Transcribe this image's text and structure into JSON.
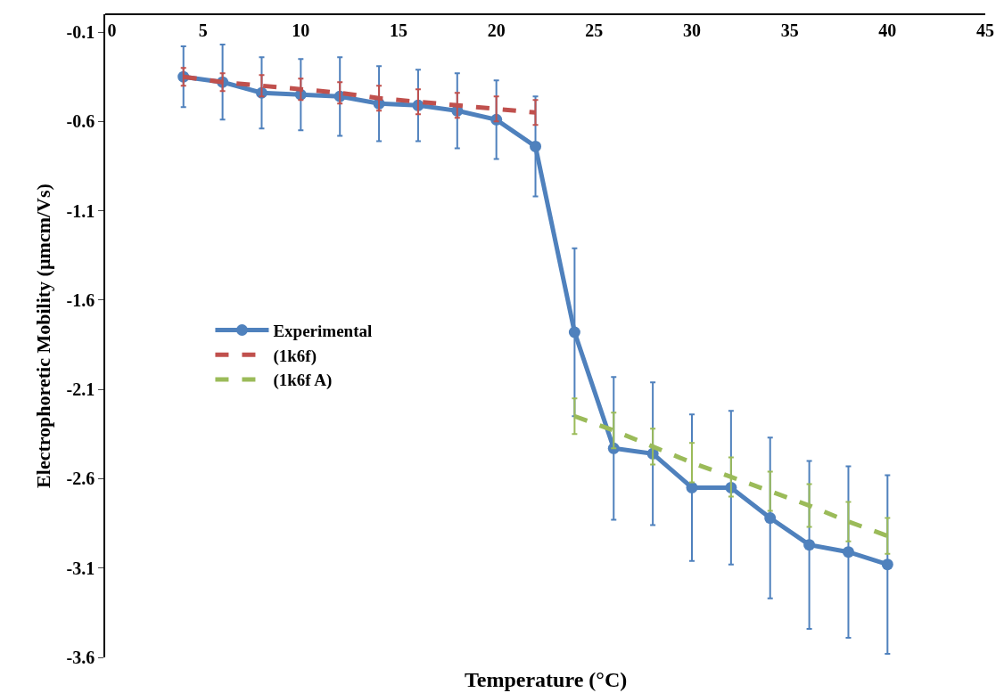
{
  "chart_data": {
    "type": "line",
    "xlabel": "Temperature (°C)",
    "ylabel": "Electrophoretic Mobility (µmcm/Vs)",
    "xlim": [
      0,
      45
    ],
    "xticks": [
      0,
      5,
      10,
      15,
      20,
      25,
      30,
      35,
      40,
      45
    ],
    "ylim": [
      -3.6,
      0
    ],
    "yticks": [
      -3.6,
      -3.1,
      -2.6,
      -2.1,
      -1.6,
      -1.1,
      -0.6,
      -0.1
    ],
    "legend": "left",
    "series": [
      {
        "name": "Experimental",
        "color": "#4f81bd",
        "marker": "circle",
        "line_style": "solid",
        "x": [
          4,
          6,
          8,
          10,
          12,
          14,
          16,
          18,
          20,
          22,
          24,
          26,
          28,
          30,
          32,
          34,
          36,
          38,
          40
        ],
        "values": [
          -0.35,
          -0.38,
          -0.44,
          -0.45,
          -0.46,
          -0.5,
          -0.51,
          -0.54,
          -0.59,
          -0.74,
          -1.78,
          -2.43,
          -2.46,
          -2.65,
          -2.65,
          -2.82,
          -2.97,
          -3.01,
          -3.08
        ],
        "errors": [
          0.17,
          0.21,
          0.2,
          0.2,
          0.22,
          0.21,
          0.2,
          0.21,
          0.22,
          0.28,
          0.47,
          0.4,
          0.4,
          0.41,
          0.43,
          0.45,
          0.47,
          0.48,
          0.5
        ]
      },
      {
        "name": "(1k6f)",
        "color": "#c0504d",
        "marker": "none",
        "line_style": "dashed",
        "x": [
          4,
          6,
          8,
          10,
          12,
          14,
          16,
          18,
          20,
          22
        ],
        "values": [
          -0.35,
          -0.38,
          -0.4,
          -0.42,
          -0.44,
          -0.47,
          -0.49,
          -0.51,
          -0.53,
          -0.55
        ],
        "errors": [
          0.05,
          0.05,
          0.06,
          0.06,
          0.06,
          0.07,
          0.07,
          0.07,
          0.07,
          0.07
        ]
      },
      {
        "name": "(1k6f A)",
        "color": "#9bbb59",
        "marker": "none",
        "line_style": "dashed",
        "x": [
          24,
          26,
          28,
          30,
          32,
          34,
          36,
          38,
          40
        ],
        "values": [
          -2.25,
          -2.33,
          -2.42,
          -2.51,
          -2.59,
          -2.67,
          -2.75,
          -2.84,
          -2.92
        ],
        "errors": [
          0.1,
          0.1,
          0.1,
          0.11,
          0.11,
          0.11,
          0.12,
          0.11,
          0.1
        ]
      }
    ]
  }
}
